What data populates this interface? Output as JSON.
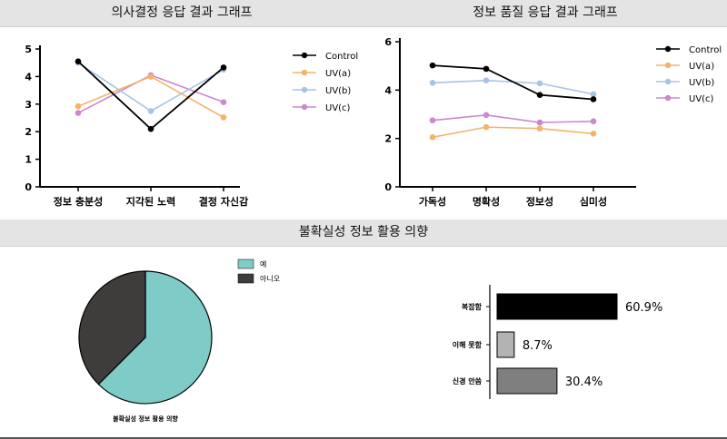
{
  "titles": {
    "chart1": "의사결정 응답 결과 그래프",
    "chart2": "정보 품질 응답 결과 그래프",
    "section2": "불확실성 정보 활용 의향"
  },
  "colors": {
    "control": "#000000",
    "uva": "#f2b46d",
    "uvb": "#a9c4e2",
    "uvc": "#cc88cc",
    "pie_yes": "#7ecbc8",
    "pie_no": "#3f3d3c",
    "bar1": "#000000",
    "bar2": "#b3b3b3",
    "bar3": "#7f7f7f"
  },
  "chart_data": [
    {
      "type": "line",
      "title": "의사결정 응답 결과 그래프",
      "categories": [
        "정보 충분성",
        "지각된 노력",
        "결정 자신감"
      ],
      "ylim": [
        0,
        5
      ],
      "yticks": [
        "0",
        "1",
        "2",
        "3",
        "4",
        "5"
      ],
      "legend_position": "right",
      "series": [
        {
          "name": "Control",
          "values": [
            4.55,
            2.1,
            4.33
          ]
        },
        {
          "name": "UV(a)",
          "values": [
            2.92,
            4.0,
            2.52
          ]
        },
        {
          "name": "UV(b)",
          "values": [
            4.5,
            2.75,
            4.25
          ]
        },
        {
          "name": "UV(c)",
          "values": [
            2.68,
            4.05,
            3.07
          ]
        }
      ]
    },
    {
      "type": "line",
      "title": "정보 품질 응답 결과 그래프",
      "categories": [
        "가독성",
        "명확성",
        "정보성",
        "심미성"
      ],
      "ylim": [
        0,
        6
      ],
      "yticks": [
        "0",
        "2",
        "4",
        "6"
      ],
      "legend_position": "right",
      "series": [
        {
          "name": "Control",
          "values": [
            5.02,
            4.88,
            3.8,
            3.62
          ]
        },
        {
          "name": "UV(a)",
          "values": [
            2.05,
            2.47,
            2.41,
            2.2
          ]
        },
        {
          "name": "UV(b)",
          "values": [
            4.3,
            4.4,
            4.28,
            3.83
          ]
        },
        {
          "name": "UV(c)",
          "values": [
            2.75,
            2.97,
            2.66,
            2.71
          ]
        }
      ]
    },
    {
      "type": "pie",
      "caption": "불확실성 정보 활용 의향",
      "slices": [
        {
          "name": "예",
          "value": 62.5
        },
        {
          "name": "아니오",
          "value": 37.5
        }
      ],
      "legend_position": "top-right"
    },
    {
      "type": "bar",
      "orientation": "horizontal",
      "categories": [
        "복잡함",
        "이해 못함",
        "신경 안씀"
      ],
      "values": [
        60.9,
        8.7,
        30.4
      ],
      "value_labels": [
        "60.9%",
        "8.7%",
        "30.4%"
      ]
    }
  ]
}
